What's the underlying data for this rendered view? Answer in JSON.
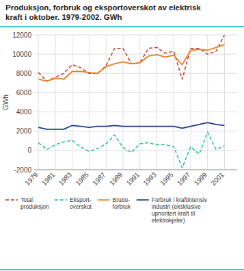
{
  "chart_data": {
    "type": "line",
    "title": "Produksjon, forbruk og eksportoverskot av elektrisk\nkraft i oktober. 1979-2002. GWh",
    "y_label": "GWh",
    "x": [
      1979,
      1980,
      1981,
      1982,
      1983,
      1984,
      1985,
      1986,
      1987,
      1988,
      1989,
      1990,
      1991,
      1992,
      1993,
      1994,
      1995,
      1996,
      1997,
      1998,
      1999,
      2000,
      2001
    ],
    "series": [
      {
        "name": "Total\nproduksjon",
        "color": "#c0392b",
        "line_style": "dashed",
        "values": [
          8100,
          7200,
          7600,
          8000,
          8900,
          8600,
          8000,
          8000,
          8800,
          10600,
          10600,
          9000,
          9100,
          10600,
          10700,
          10100,
          10300,
          7400,
          10600,
          10600,
          10000,
          10300,
          12000
        ]
      },
      {
        "name": "Eksport-\noverskot",
        "color": "#1abc9c",
        "line_style": "dashed",
        "values": [
          800,
          100,
          600,
          900,
          1050,
          350,
          -100,
          200,
          700,
          1600,
          300,
          -200,
          700,
          800,
          600,
          600,
          400,
          -1800,
          400,
          -400,
          1900,
          100,
          500
        ]
      },
      {
        "name": "Brutto-\nforbruk",
        "color": "#e67e22",
        "line_style": "solid",
        "values": [
          7400,
          7200,
          7500,
          7400,
          8200,
          8200,
          8100,
          8000,
          8700,
          9000,
          9200,
          9000,
          9100,
          9800,
          9950,
          9700,
          9900,
          8900,
          10400,
          10500,
          10400,
          10700,
          11000
        ]
      },
      {
        "name": "Forbruk i kraftintensiv\nindustri (eksklusive\nuprioritert kraft til\nelektrokjelar)",
        "color": "#1a3a8a",
        "line_style": "solid",
        "values": [
          2400,
          2200,
          2200,
          2200,
          2600,
          2500,
          2400,
          2500,
          2500,
          2600,
          2500,
          2500,
          2500,
          2500,
          2500,
          2500,
          2500,
          2300,
          2500,
          2700,
          2900,
          2700,
          2600
        ]
      }
    ],
    "xlim": [
      1978.5,
      2002.5
    ],
    "xticks": [
      1979,
      1981,
      1983,
      1985,
      1987,
      1989,
      1991,
      1993,
      1995,
      1997,
      1999,
      2001
    ],
    "ylim": [
      -2000,
      12000
    ],
    "yticks": [
      -2000,
      0,
      2000,
      4000,
      6000,
      8000,
      10000,
      12000
    ],
    "grid": true,
    "legend": "bottom"
  }
}
